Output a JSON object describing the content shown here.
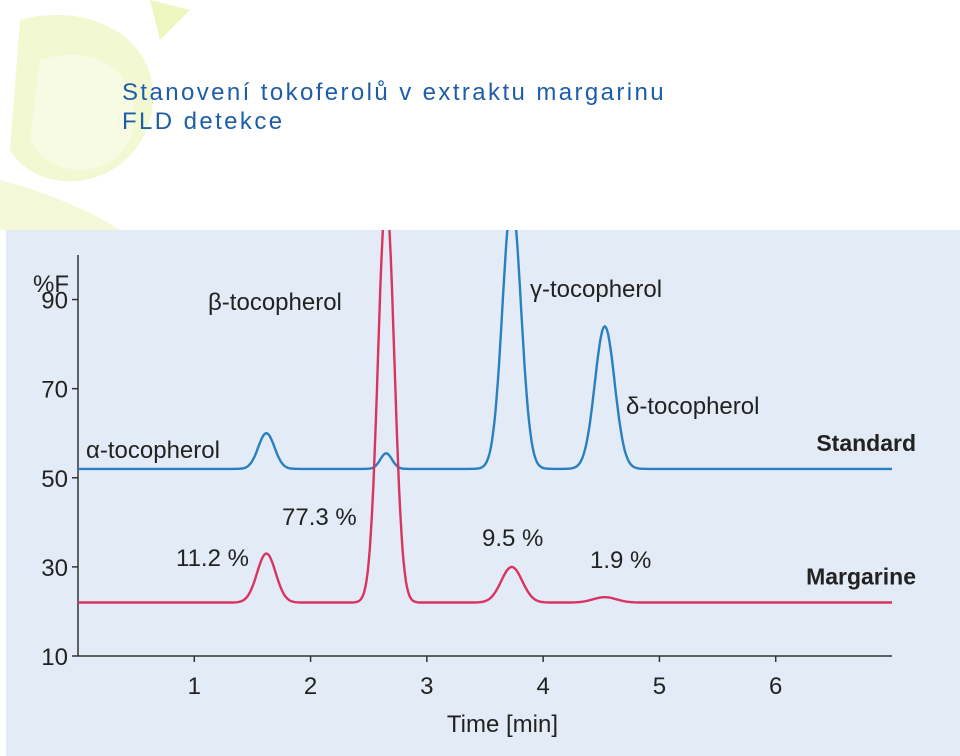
{
  "title": {
    "line1": "Stanovení tokoferolů v extraktu margarinu",
    "line2": "FLD detekce"
  },
  "colors": {
    "title": "#1e5ea8",
    "standard": "#2a7fc0",
    "margarine": "#d8345f",
    "panel": "#e3ecf6",
    "decoration": "#eef6c8"
  },
  "chart_data": {
    "type": "line",
    "xlabel": "Time [min]",
    "ylabel": "%F",
    "xlim": [
      0,
      7
    ],
    "ylim": [
      10,
      100
    ],
    "xticks": [
      1,
      2,
      3,
      4,
      5,
      6
    ],
    "yticks": [
      10,
      30,
      50,
      70,
      90
    ],
    "grid": false,
    "series": [
      {
        "name": "Standard",
        "baseline": 52,
        "peaks": [
          {
            "x": 1.62,
            "height": 8,
            "width": 0.07,
            "label": "α-tocopherol"
          },
          {
            "x": 2.65,
            "height": 3.5,
            "width": 0.05,
            "label": "β-tocopherol"
          },
          {
            "x": 3.73,
            "height": 60,
            "width": 0.08,
            "label": "γ-tocopherol"
          },
          {
            "x": 4.53,
            "height": 32,
            "width": 0.085,
            "label": "δ-tocopherol"
          }
        ]
      },
      {
        "name": "Margarine",
        "baseline": 22,
        "peaks": [
          {
            "x": 1.62,
            "height": 11,
            "width": 0.08,
            "label": "11.2 %"
          },
          {
            "x": 2.65,
            "height": 91,
            "width": 0.07,
            "label": "77.3 %"
          },
          {
            "x": 3.73,
            "height": 8,
            "width": 0.09,
            "label": "9.5 %"
          },
          {
            "x": 4.53,
            "height": 1.2,
            "width": 0.1,
            "label": "1.9 %"
          }
        ]
      }
    ],
    "annotations": [
      "α-tocopherol",
      "β-tocopherol",
      "γ-tocopherol",
      "δ-tocopherol",
      "11.2 %",
      "77.3 %",
      "9.5 %",
      "1.9 %"
    ]
  }
}
